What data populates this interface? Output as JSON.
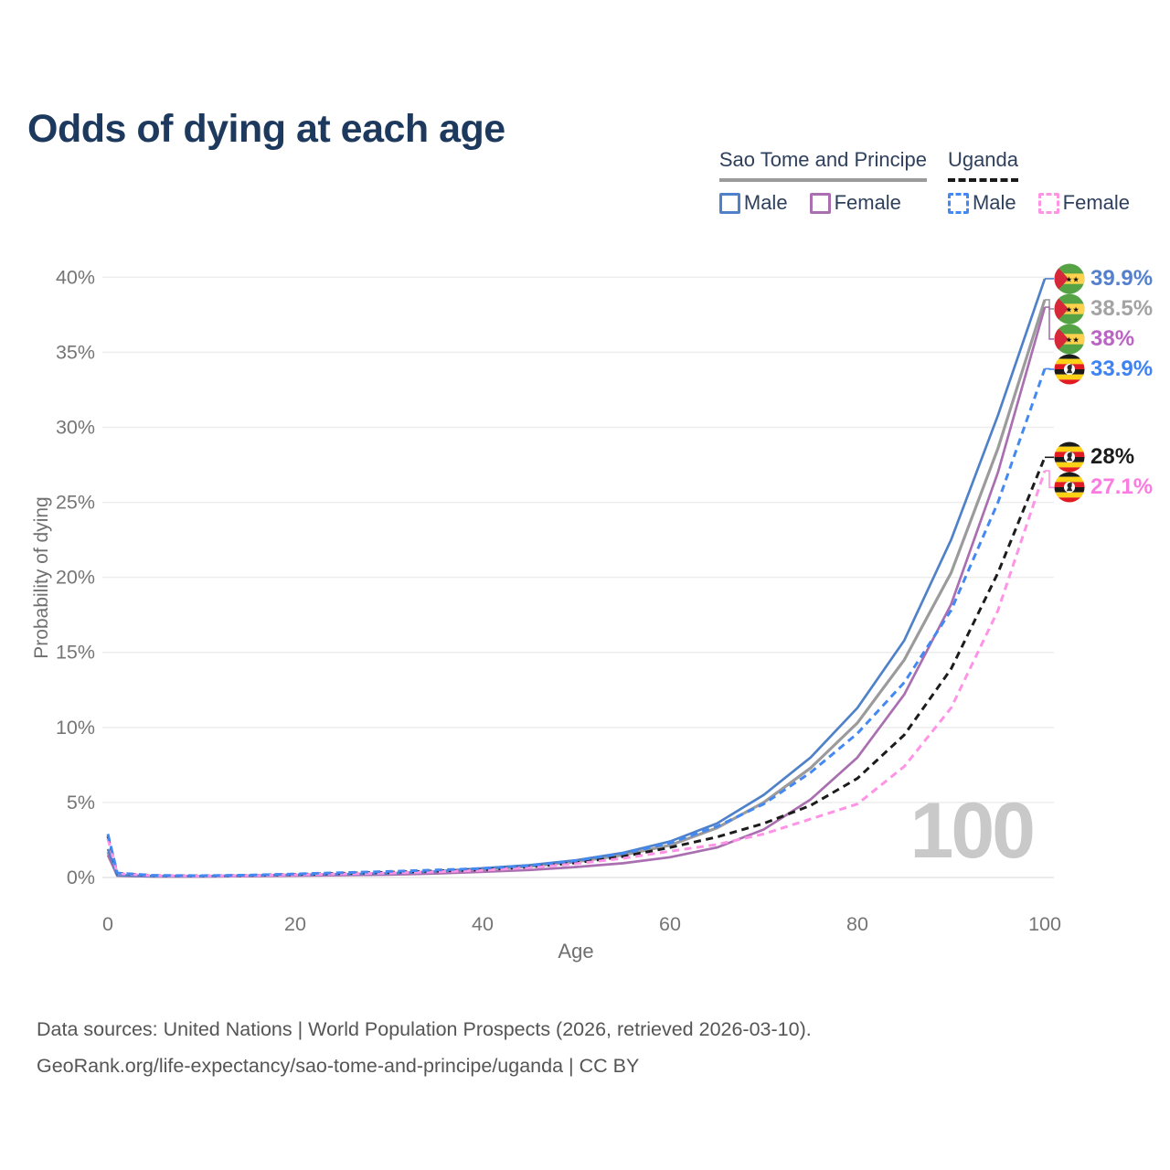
{
  "title": "Odds of dying at each age",
  "legend": {
    "groups": [
      {
        "label": "Sao Tome and Principe",
        "rule_style": "solid",
        "rule_color": "#9b9b9b",
        "items": [
          {
            "label": "Male",
            "color": "#4f81c9",
            "dashed": false
          },
          {
            "label": "Female",
            "color": "#a96fb0",
            "dashed": false
          }
        ]
      },
      {
        "label": "Uganda",
        "rule_style": "dashed",
        "rule_color": "#1a1a1a",
        "items": [
          {
            "label": "Male",
            "color": "#4489f2",
            "dashed": true
          },
          {
            "label": "Female",
            "color": "#ff93e6",
            "dashed": true
          }
        ]
      }
    ]
  },
  "chart_data": {
    "type": "line",
    "title": "Odds of dying at each age",
    "xlabel": "Age",
    "ylabel": "Probability of dying",
    "xlim": [
      0,
      100
    ],
    "ylim": [
      0,
      40
    ],
    "x_ticks": [
      0,
      20,
      40,
      60,
      80,
      100
    ],
    "y_ticks": [
      0,
      5,
      10,
      15,
      20,
      25,
      30,
      35,
      40
    ],
    "y_tick_suffix": "%",
    "grid": "horizontal",
    "legend_position": "top-right",
    "watermark": "100",
    "ages": [
      0,
      1,
      5,
      10,
      15,
      20,
      25,
      30,
      35,
      40,
      45,
      50,
      55,
      60,
      65,
      70,
      75,
      80,
      85,
      90,
      95,
      100
    ],
    "series": [
      {
        "country": "Sao Tome and Principe",
        "name": "Male",
        "style": "solid",
        "color": "#4f81c9",
        "label_color": "#5580ce",
        "flag": "sao-tome-and-principe",
        "end_label": "39.9%",
        "values": [
          1.9,
          0.15,
          0.09,
          0.09,
          0.13,
          0.18,
          0.22,
          0.28,
          0.4,
          0.62,
          0.82,
          1.15,
          1.65,
          2.4,
          3.6,
          5.5,
          8.0,
          11.3,
          15.8,
          22.5,
          30.8,
          39.9
        ]
      },
      {
        "country": "Sao Tome and Principe",
        "name": "Sao Tome and Principe",
        "style": "solid",
        "color": "#9b9b9b",
        "label_color": "#a3a3a3",
        "flag": "sao-tome-and-principe",
        "end_label": "38.5%",
        "values": [
          1.7,
          0.13,
          0.08,
          0.08,
          0.11,
          0.15,
          0.19,
          0.24,
          0.34,
          0.55,
          0.74,
          1.05,
          1.5,
          2.15,
          3.3,
          5.0,
          7.3,
          10.3,
          14.5,
          20.3,
          28.6,
          38.5
        ]
      },
      {
        "country": "Sao Tome and Principe",
        "name": "Female",
        "style": "solid",
        "color": "#a96fb0",
        "label_color": "#ba64c4",
        "flag": "sao-tome-and-principe",
        "end_label": "38%",
        "values": [
          1.5,
          0.12,
          0.07,
          0.07,
          0.09,
          0.12,
          0.15,
          0.19,
          0.27,
          0.38,
          0.5,
          0.7,
          0.95,
          1.35,
          2.0,
          3.2,
          5.2,
          8.0,
          12.2,
          18.2,
          27.0,
          38.0
        ]
      },
      {
        "country": "Uganda",
        "name": "Male",
        "style": "dashed",
        "color": "#4489f2",
        "label_color": "#3f82f2",
        "flag": "uganda",
        "end_label": "33.9%",
        "values": [
          2.9,
          0.3,
          0.14,
          0.12,
          0.16,
          0.24,
          0.32,
          0.4,
          0.5,
          0.6,
          0.8,
          1.12,
          1.6,
          2.3,
          3.4,
          4.9,
          7.0,
          9.6,
          13.0,
          17.8,
          25.0,
          33.9
        ]
      },
      {
        "country": "Uganda",
        "name": "Uganda",
        "style": "dashed",
        "color": "#1c1c1c",
        "label_color": "#1c1c1c",
        "flag": "uganda",
        "end_label": "28%",
        "values": [
          2.75,
          0.28,
          0.13,
          0.11,
          0.14,
          0.21,
          0.28,
          0.35,
          0.43,
          0.52,
          0.7,
          0.98,
          1.4,
          2.0,
          2.7,
          3.6,
          4.8,
          6.6,
          9.5,
          13.9,
          20.3,
          28.0
        ]
      },
      {
        "country": "Uganda",
        "name": "Female",
        "style": "dashed",
        "color": "#ff93e6",
        "label_color": "#fb7ce0",
        "flag": "uganda",
        "end_label": "27.1%",
        "values": [
          2.6,
          0.26,
          0.12,
          0.1,
          0.13,
          0.18,
          0.24,
          0.3,
          0.38,
          0.48,
          0.66,
          0.92,
          1.28,
          1.75,
          2.2,
          2.9,
          3.9,
          4.9,
          7.4,
          11.3,
          17.8,
          27.1
        ]
      }
    ]
  },
  "footer": {
    "line1": "Data sources: United Nations | World Population Prospects (2026, retrieved 2026-03-10).",
    "line2": "GeoRank.org/life-expectancy/sao-tome-and-principe/uganda | CC BY"
  }
}
